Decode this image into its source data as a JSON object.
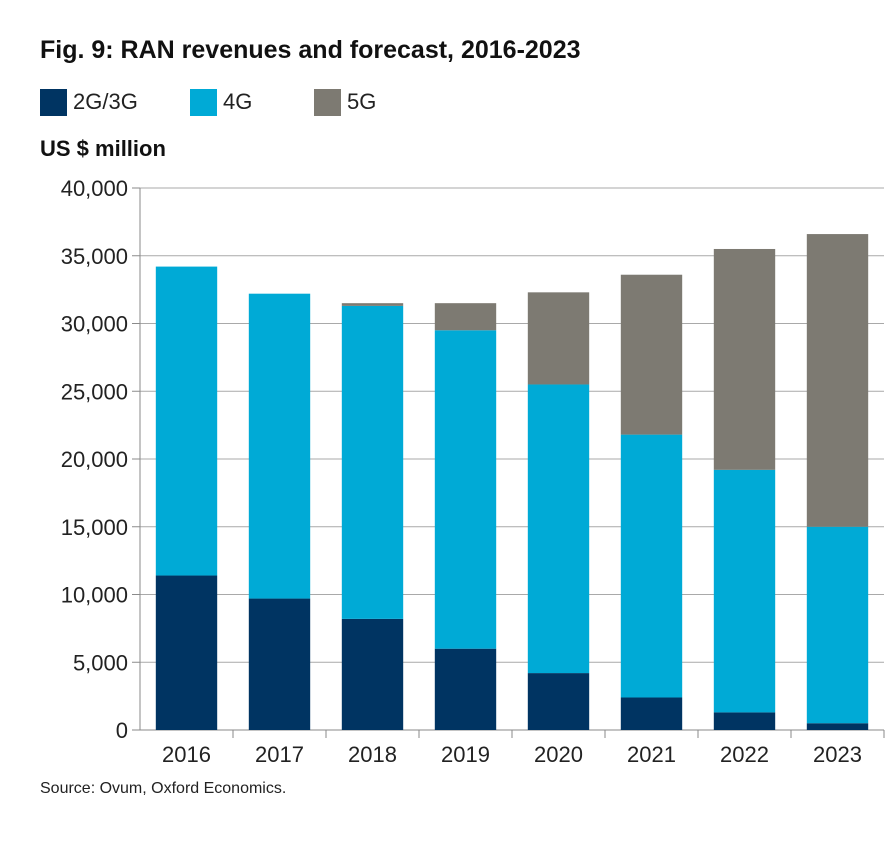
{
  "chart_data": {
    "type": "bar",
    "stacked": true,
    "title": "Fig. 9: RAN revenues and forecast, 2016-2023",
    "ylabel": "US $ million",
    "xlabel": "",
    "source": "Source: Ovum, Oxford Economics.",
    "categories": [
      "2016",
      "2017",
      "2018",
      "2019",
      "2020",
      "2021",
      "2022",
      "2023"
    ],
    "series": [
      {
        "name": "2G/3G",
        "color": "#003462",
        "values": [
          11400,
          9700,
          8200,
          6000,
          4200,
          2400,
          1300,
          500
        ]
      },
      {
        "name": "4G",
        "color": "#00aad6",
        "values": [
          22800,
          22500,
          23100,
          23500,
          21300,
          19400,
          17900,
          14500
        ]
      },
      {
        "name": "5G",
        "color": "#7d7a72",
        "values": [
          0,
          0,
          200,
          2000,
          6800,
          11800,
          16300,
          21600
        ]
      }
    ],
    "ylim": [
      0,
      40000
    ],
    "yticks": [
      0,
      5000,
      10000,
      15000,
      20000,
      25000,
      30000,
      35000,
      40000
    ],
    "ytick_labels": [
      "0",
      "5,000",
      "10,000",
      "15,000",
      "20,000",
      "25,000",
      "30,000",
      "35,000",
      "40,000"
    ],
    "grid": true,
    "legend_position": "top-left"
  }
}
